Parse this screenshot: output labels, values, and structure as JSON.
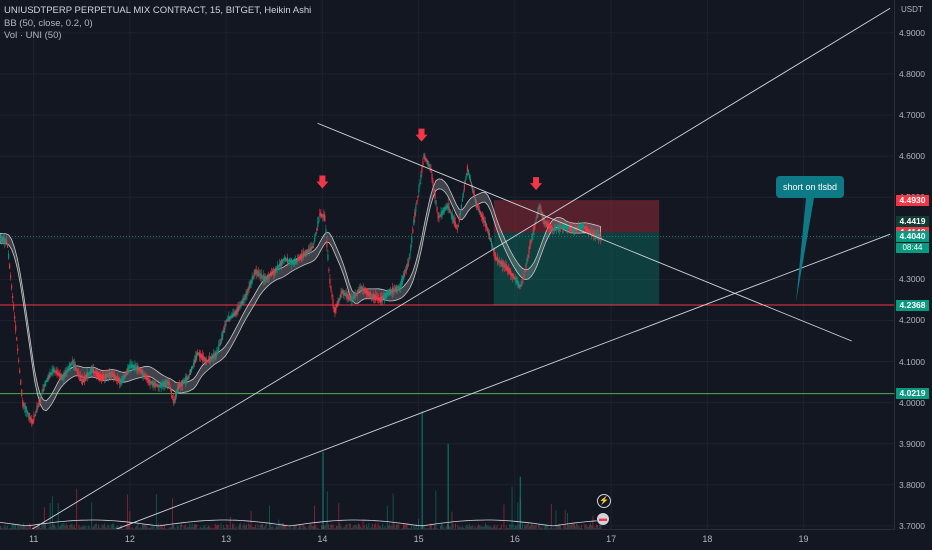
{
  "legend": {
    "title": "UNIUSDTPERP PERPETUAL MIX CONTRACT, 15, BITGET, Heikin Ashi",
    "bb": "BB (50, close, 0.2, 0)",
    "vol": "Vol · UNI (50)"
  },
  "price_axis": {
    "currency": "USDT",
    "ticks": [
      "4.9000",
      "4.8000",
      "4.7000",
      "4.6000",
      "4.5000",
      "4.4000",
      "4.3000",
      "4.2000",
      "4.1000",
      "4.0000",
      "3.9000",
      "3.8000",
      "3.7000"
    ]
  },
  "time_axis": {
    "ticks": [
      "11",
      "12",
      "13",
      "14",
      "15",
      "16",
      "17",
      "18",
      "19"
    ]
  },
  "price_tags": [
    {
      "text": "4.4930",
      "style": "red"
    },
    {
      "text": "4.4419",
      "style": "dark"
    },
    {
      "text": "4.4140",
      "style": "red"
    },
    {
      "text": "4.4040",
      "style": "green"
    },
    {
      "text": "4.2375",
      "style": "red"
    },
    {
      "text": "4.2368",
      "style": "green"
    },
    {
      "text": "4.0219",
      "style": "green"
    }
  ],
  "countdown": "08:44",
  "callout": "short on tlsbd",
  "colors": {
    "up": "#089981",
    "down": "#f23645",
    "background": "#131722",
    "arrow": "#f23645"
  },
  "chart_data": {
    "type": "candlestick",
    "symbol": "UNIUSDTPERP",
    "interval": "15",
    "exchange": "BITGET",
    "style": "Heikin Ashi",
    "ylim": [
      3.69,
      4.98
    ],
    "xlim": [
      10.65,
      19.95
    ],
    "horizontal_levels": [
      4.2375,
      4.0219
    ],
    "trend_lines": [
      {
        "from": [
          10.9,
          3.68
        ],
        "to": [
          19.9,
          4.96
        ]
      },
      {
        "from": [
          11.5,
          3.66
        ],
        "to": [
          19.9,
          4.41
        ]
      },
      {
        "from": [
          13.95,
          4.68
        ],
        "to": [
          19.5,
          4.15
        ]
      }
    ],
    "position": {
      "entry": 4.414,
      "stop": 4.493,
      "target": 4.2375,
      "start": 15.78,
      "end": 17.5
    },
    "arrows": [
      14.0,
      15.03,
      16.22
    ],
    "path": [
      [
        10.65,
        4.4
      ],
      [
        10.72,
        4.39
      ],
      [
        10.8,
        4.2
      ],
      [
        10.88,
        4.0
      ],
      [
        10.98,
        3.95
      ],
      [
        11.05,
        4.0
      ],
      [
        11.12,
        4.05
      ],
      [
        11.2,
        4.08
      ],
      [
        11.3,
        4.06
      ],
      [
        11.4,
        4.1
      ],
      [
        11.5,
        4.05
      ],
      [
        11.6,
        4.08
      ],
      [
        11.7,
        4.06
      ],
      [
        11.8,
        4.07
      ],
      [
        11.9,
        4.05
      ],
      [
        12.0,
        4.09
      ],
      [
        12.1,
        4.08
      ],
      [
        12.2,
        4.05
      ],
      [
        12.3,
        4.04
      ],
      [
        12.4,
        4.05
      ],
      [
        12.45,
        4.0
      ],
      [
        12.5,
        4.04
      ],
      [
        12.6,
        4.06
      ],
      [
        12.7,
        4.12
      ],
      [
        12.8,
        4.1
      ],
      [
        12.9,
        4.12
      ],
      [
        13.0,
        4.2
      ],
      [
        13.1,
        4.22
      ],
      [
        13.2,
        4.26
      ],
      [
        13.3,
        4.32
      ],
      [
        13.4,
        4.3
      ],
      [
        13.5,
        4.32
      ],
      [
        13.6,
        4.35
      ],
      [
        13.7,
        4.34
      ],
      [
        13.8,
        4.36
      ],
      [
        13.9,
        4.38
      ],
      [
        13.97,
        4.46
      ],
      [
        14.02,
        4.45
      ],
      [
        14.07,
        4.3
      ],
      [
        14.12,
        4.22
      ],
      [
        14.2,
        4.27
      ],
      [
        14.3,
        4.25
      ],
      [
        14.4,
        4.28
      ],
      [
        14.5,
        4.26
      ],
      [
        14.6,
        4.25
      ],
      [
        14.7,
        4.27
      ],
      [
        14.8,
        4.28
      ],
      [
        14.9,
        4.35
      ],
      [
        14.95,
        4.45
      ],
      [
        15.0,
        4.52
      ],
      [
        15.05,
        4.6
      ],
      [
        15.12,
        4.57
      ],
      [
        15.2,
        4.45
      ],
      [
        15.3,
        4.48
      ],
      [
        15.4,
        4.42
      ],
      [
        15.5,
        4.57
      ],
      [
        15.6,
        4.48
      ],
      [
        15.7,
        4.43
      ],
      [
        15.8,
        4.35
      ],
      [
        15.9,
        4.33
      ],
      [
        16.0,
        4.3
      ],
      [
        16.05,
        4.28
      ],
      [
        16.1,
        4.32
      ],
      [
        16.15,
        4.38
      ],
      [
        16.2,
        4.43
      ],
      [
        16.25,
        4.48
      ],
      [
        16.3,
        4.44
      ],
      [
        16.4,
        4.42
      ],
      [
        16.5,
        4.43
      ],
      [
        16.6,
        4.42
      ],
      [
        16.7,
        4.43
      ],
      [
        16.8,
        4.41
      ],
      [
        16.9,
        4.4
      ]
    ],
    "volume_spikes": [
      [
        14.0,
        3.88
      ],
      [
        15.03,
        3.98
      ],
      [
        16.05,
        3.82
      ],
      [
        15.3,
        3.9
      ]
    ]
  }
}
